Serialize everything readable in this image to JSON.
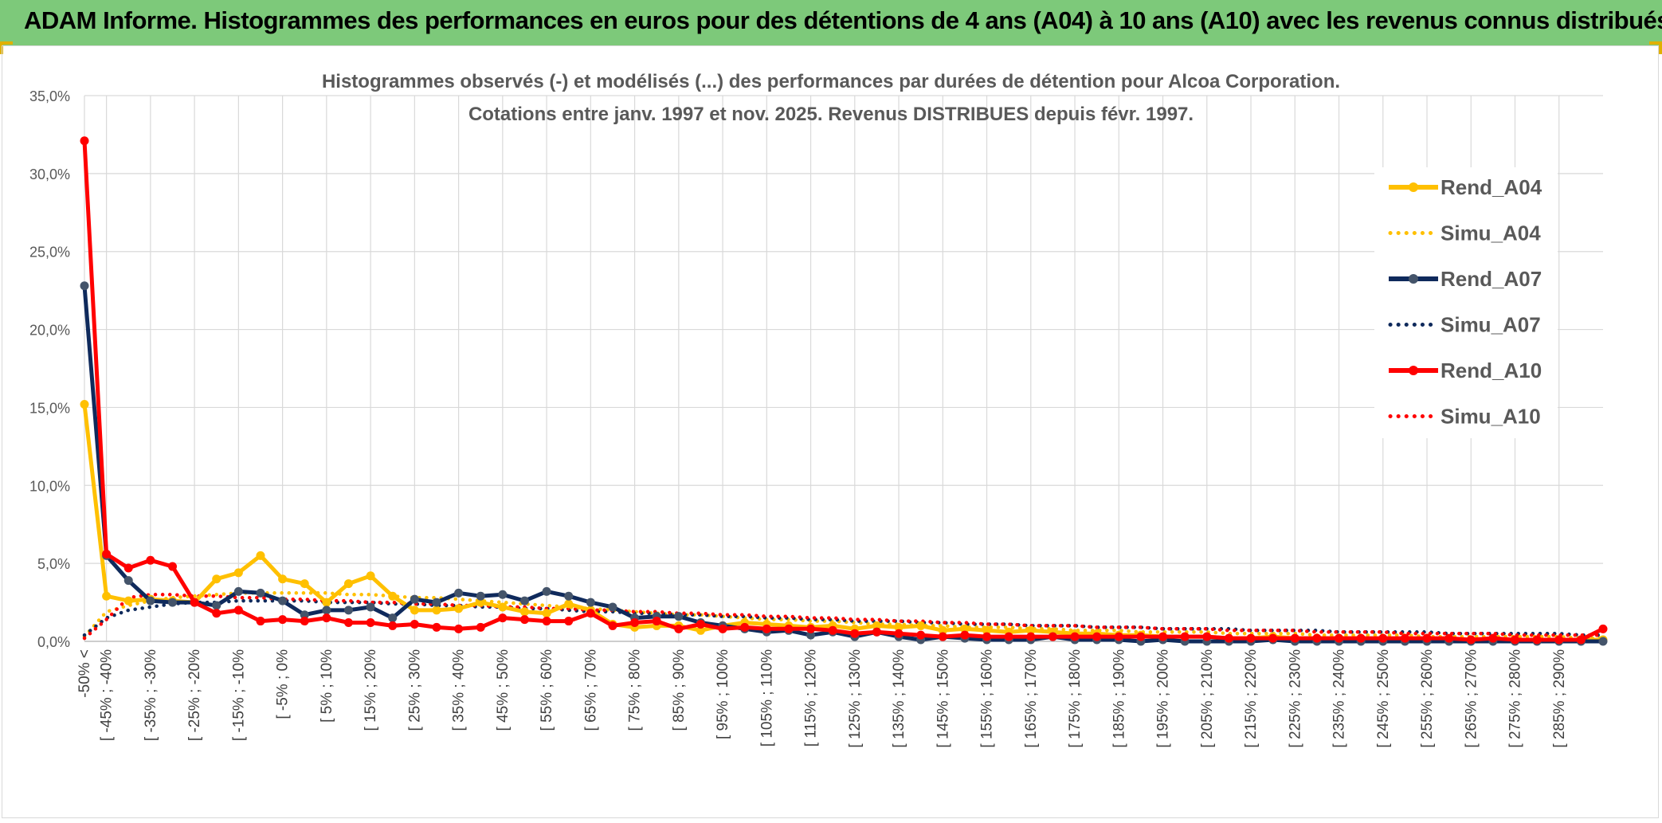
{
  "header": {
    "title": "ADAM Informe. Histogrammes des performances en euros pour des détentions de 4 ans (A04) à 10 ans (A10) avec les revenus connus distribués"
  },
  "chart_data": {
    "type": "line",
    "title": "Histogrammes observés (-) et modélisés (...) des performances par durées de détention pour Alcoa Corporation.",
    "subtitle": "Cotations entre janv. 1997 et nov. 2025. Revenus DISTRIBUES depuis févr. 1997.",
    "xlabel": "",
    "ylabel": "",
    "ylim": [
      0,
      35
    ],
    "y_ticks": [
      "0,0%",
      "5,0%",
      "10,0%",
      "15,0%",
      "20,0%",
      "25,0%",
      "30,0%",
      "35,0%"
    ],
    "grid": true,
    "legend_position": "right",
    "x_count": 70,
    "x_tick_labels": [
      "-50% <",
      "[ -45% ; -40%",
      "[ -35% ; -30%",
      "[ -25% ; -20%",
      "[ -15% ; -10%",
      "[ -5% ; 0%",
      "[ 5% ; 10%",
      "[ 15% ; 20%",
      "[ 25% ; 30%",
      "[ 35% ; 40%",
      "[ 45% ; 50%",
      "[ 55% ; 60%",
      "[ 65% ; 70%",
      "[ 75% ; 80%",
      "[ 85% ; 90%",
      "[ 95% ; 100%",
      "[ 105% ; 110%",
      "[ 115% ; 120%",
      "[ 125% ; 130%",
      "[ 135% ; 140%",
      "[ 145% ; 150%",
      "[ 155% ; 160%",
      "[ 165% ; 170%",
      "[ 175% ; 180%",
      "[ 185% ; 190%",
      "[ 195% ; 200%",
      "[ 205% ; 210%",
      "[ 215% ; 220%",
      "[ 225% ; 230%",
      "[ 235% ; 240%",
      "[ 245% ; 250%",
      "[ 255% ; 260%",
      "[ 265% ; 270%",
      "[ 275% ; 280%",
      "[ 285% ; 290%"
    ],
    "series": [
      {
        "name": "Rend_A04",
        "style": "solid",
        "color": "#ffc000",
        "values": [
          15.2,
          2.9,
          2.6,
          2.7,
          2.6,
          2.5,
          4.0,
          4.4,
          5.5,
          4.0,
          3.7,
          2.5,
          3.7,
          4.2,
          2.9,
          2.0,
          2.0,
          2.1,
          2.5,
          2.2,
          1.9,
          1.8,
          2.4,
          2.0,
          1.1,
          0.9,
          1.0,
          1.0,
          0.7,
          1.0,
          1.2,
          1.1,
          1.0,
          0.9,
          1.0,
          0.8,
          1.0,
          0.9,
          1.0,
          0.7,
          0.8,
          0.7,
          0.6,
          0.7,
          0.6,
          0.5,
          0.5,
          0.4,
          0.4,
          0.3,
          0.3,
          0.3,
          0.2,
          0.2,
          0.3,
          0.2,
          0.2,
          0.2,
          0.2,
          0.1,
          0.1,
          0.2,
          0.1,
          0.1,
          0.1,
          0.1,
          0.1,
          0.1,
          0.1,
          0.1
        ]
      },
      {
        "name": "Simu_A04",
        "style": "dotted",
        "color": "#ffc000",
        "values": [
          0.3,
          1.9,
          2.3,
          2.6,
          2.8,
          2.9,
          3.0,
          3.1,
          3.1,
          3.1,
          3.1,
          3.1,
          3.0,
          3.0,
          2.9,
          2.8,
          2.8,
          2.7,
          2.6,
          2.5,
          2.4,
          2.3,
          2.2,
          2.1,
          2.0,
          1.9,
          1.8,
          1.7,
          1.7,
          1.6,
          1.5,
          1.4,
          1.4,
          1.3,
          1.3,
          1.2,
          1.1,
          1.1,
          1.0,
          1.0,
          0.9,
          0.9,
          0.9,
          0.8,
          0.8,
          0.7,
          0.7,
          0.7,
          0.6,
          0.6,
          0.6,
          0.6,
          0.5,
          0.5,
          0.5,
          0.5,
          0.4,
          0.4,
          0.4,
          0.4,
          0.4,
          0.3,
          0.3,
          0.3,
          0.3,
          0.3,
          0.3,
          0.3,
          0.2,
          0.2
        ]
      },
      {
        "name": "Rend_A07",
        "style": "solid",
        "color": "#0f2a5c",
        "values": [
          22.8,
          5.5,
          3.9,
          2.6,
          2.5,
          2.5,
          2.3,
          3.2,
          3.1,
          2.6,
          1.7,
          2.0,
          2.0,
          2.2,
          1.5,
          2.7,
          2.5,
          3.1,
          2.9,
          3.0,
          2.6,
          3.2,
          2.9,
          2.5,
          2.2,
          1.5,
          1.6,
          1.6,
          1.2,
          1.0,
          0.8,
          0.6,
          0.7,
          0.4,
          0.6,
          0.3,
          0.6,
          0.3,
          0.1,
          0.3,
          0.2,
          0.1,
          0.1,
          0.1,
          0.3,
          0.1,
          0.1,
          0.1,
          0.0,
          0.1,
          0.0,
          0.0,
          0.0,
          0.0,
          0.1,
          0.0,
          0.0,
          0.0,
          0.0,
          0.0,
          0.0,
          0.0,
          0.0,
          0.0,
          0.0,
          0.0,
          0.0,
          0.0,
          0.0,
          0.0
        ]
      },
      {
        "name": "Simu_A07",
        "style": "dotted",
        "color": "#0f2a5c",
        "values": [
          0.4,
          1.5,
          2.0,
          2.2,
          2.4,
          2.5,
          2.5,
          2.6,
          2.6,
          2.6,
          2.6,
          2.5,
          2.5,
          2.5,
          2.4,
          2.4,
          2.3,
          2.3,
          2.2,
          2.2,
          2.1,
          2.1,
          2.0,
          1.9,
          1.9,
          1.8,
          1.8,
          1.7,
          1.7,
          1.6,
          1.6,
          1.5,
          1.5,
          1.4,
          1.4,
          1.3,
          1.3,
          1.3,
          1.2,
          1.2,
          1.1,
          1.1,
          1.1,
          1.0,
          1.0,
          1.0,
          0.9,
          0.9,
          0.9,
          0.8,
          0.8,
          0.8,
          0.8,
          0.7,
          0.7,
          0.7,
          0.7,
          0.6,
          0.6,
          0.6,
          0.6,
          0.6,
          0.5,
          0.5,
          0.5,
          0.5,
          0.5,
          0.5,
          0.4,
          0.4
        ]
      },
      {
        "name": "Rend_A10",
        "style": "solid",
        "color": "#ff0000",
        "values": [
          32.1,
          5.6,
          4.7,
          5.2,
          4.8,
          2.5,
          1.8,
          2.0,
          1.3,
          1.4,
          1.3,
          1.5,
          1.2,
          1.2,
          1.0,
          1.1,
          0.9,
          0.8,
          0.9,
          1.5,
          1.4,
          1.3,
          1.3,
          1.8,
          1.0,
          1.2,
          1.3,
          0.8,
          1.1,
          0.8,
          0.9,
          0.8,
          0.8,
          0.8,
          0.7,
          0.5,
          0.6,
          0.5,
          0.4,
          0.3,
          0.4,
          0.3,
          0.3,
          0.3,
          0.3,
          0.3,
          0.3,
          0.3,
          0.3,
          0.3,
          0.3,
          0.3,
          0.2,
          0.2,
          0.2,
          0.2,
          0.2,
          0.2,
          0.2,
          0.2,
          0.2,
          0.2,
          0.2,
          0.1,
          0.2,
          0.1,
          0.1,
          0.1,
          0.1,
          0.8
        ]
      },
      {
        "name": "Simu_A10",
        "style": "dotted",
        "color": "#ff0000",
        "values": [
          0.2,
          1.4,
          2.8,
          3.0,
          3.0,
          2.9,
          2.9,
          2.8,
          2.8,
          2.7,
          2.7,
          2.6,
          2.6,
          2.5,
          2.5,
          2.4,
          2.4,
          2.3,
          2.3,
          2.2,
          2.2,
          2.1,
          2.1,
          2.0,
          2.0,
          1.9,
          1.9,
          1.8,
          1.8,
          1.7,
          1.7,
          1.6,
          1.6,
          1.5,
          1.5,
          1.4,
          1.4,
          1.3,
          1.3,
          1.2,
          1.2,
          1.1,
          1.1,
          1.0,
          1.0,
          1.0,
          0.9,
          0.9,
          0.9,
          0.8,
          0.8,
          0.8,
          0.7,
          0.7,
          0.7,
          0.7,
          0.6,
          0.6,
          0.6,
          0.6,
          0.5,
          0.5,
          0.5,
          0.5,
          0.5,
          0.4,
          0.4,
          0.4,
          0.4,
          0.4
        ]
      }
    ]
  }
}
